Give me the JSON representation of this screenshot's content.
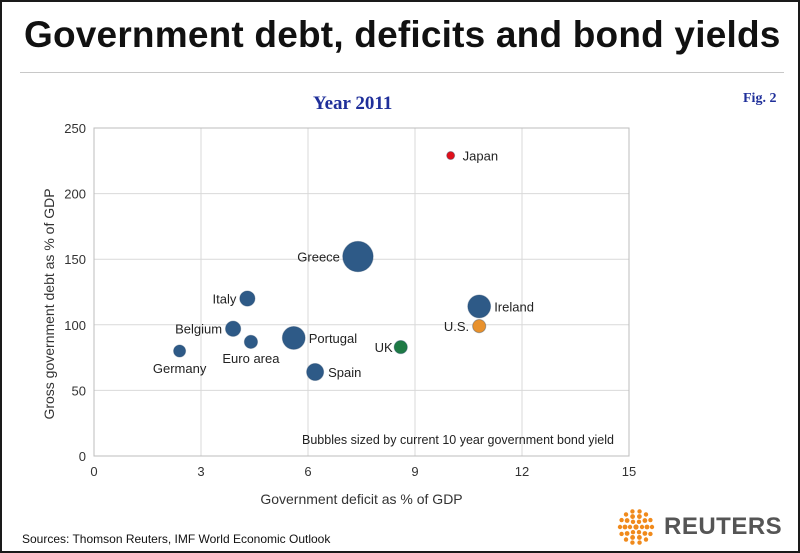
{
  "header": {
    "title": "Government debt, deficits and bond yields",
    "year": "Year 2011",
    "figure": "Fig. 2"
  },
  "footer": {
    "sources": "Sources: Thomson Reuters, IMF World Economic Outlook",
    "logo_text": "REUTERS"
  },
  "colors": {
    "euro": "#2e5a87",
    "japan": "#e0101b",
    "us": "#e8912c",
    "uk": "#1e7a45"
  },
  "chart_data": {
    "type": "scatter",
    "xlabel": "Government deficit as % of GDP",
    "ylabel": "Gross government debt as % of GDP",
    "xlim": [
      0,
      15
    ],
    "ylim": [
      0,
      250
    ],
    "xticks": [
      0,
      3,
      6,
      9,
      12,
      15
    ],
    "yticks": [
      0,
      50,
      100,
      150,
      200,
      250
    ],
    "grid": true,
    "annotation": "Bubbles sized by current 10 year government bond yield",
    "points": [
      {
        "label": "Japan",
        "x": 10.0,
        "y": 229,
        "size": 1.0,
        "color": "#e0101b"
      },
      {
        "label": "Greece",
        "x": 7.4,
        "y": 152,
        "size": 16.0,
        "color": "#2e5a87"
      },
      {
        "label": "Ireland",
        "x": 10.8,
        "y": 114,
        "size": 9.0,
        "color": "#2e5a87"
      },
      {
        "label": "Italy",
        "x": 4.3,
        "y": 120,
        "size": 4.0,
        "color": "#2e5a87"
      },
      {
        "label": "Belgium",
        "x": 3.9,
        "y": 97,
        "size": 4.0,
        "color": "#2e5a87"
      },
      {
        "label": "Euro area",
        "x": 4.4,
        "y": 87,
        "size": 3.0,
        "color": "#2e5a87"
      },
      {
        "label": "Portugal",
        "x": 5.6,
        "y": 90,
        "size": 9.0,
        "color": "#2e5a87"
      },
      {
        "label": "Germany",
        "x": 2.4,
        "y": 80,
        "size": 2.5,
        "color": "#2e5a87"
      },
      {
        "label": "Spain",
        "x": 6.2,
        "y": 64,
        "size": 5.0,
        "color": "#2e5a87"
      },
      {
        "label": "U.S.",
        "x": 10.8,
        "y": 99,
        "size": 3.0,
        "color": "#e8912c"
      },
      {
        "label": "UK",
        "x": 8.6,
        "y": 83,
        "size": 3.0,
        "color": "#1e7a45"
      }
    ]
  }
}
